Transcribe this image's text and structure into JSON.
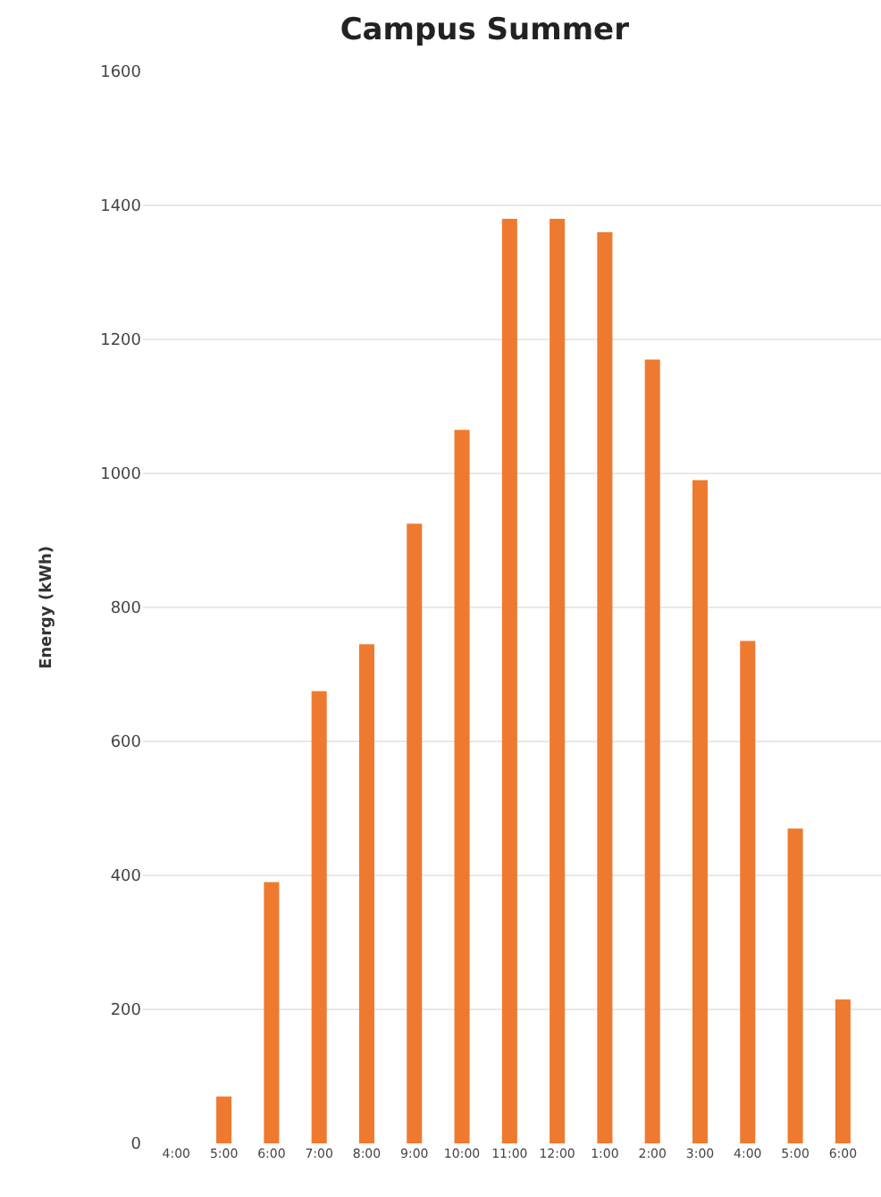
{
  "chart_data": {
    "type": "bar",
    "title": "Campus Summer",
    "ylabel": "Energy (kWh)",
    "categories": [
      "4:00",
      "5:00",
      "6:00",
      "7:00",
      "8:00",
      "9:00",
      "10:00",
      "11:00",
      "12:00",
      "1:00",
      "2:00",
      "3:00",
      "4:00",
      "5:00",
      "6:00"
    ],
    "values": [
      0,
      70,
      390,
      675,
      745,
      925,
      1065,
      1380,
      1380,
      1360,
      1170,
      990,
      750,
      470,
      215
    ],
    "color": "#ee7a30",
    "ylim": [
      0,
      1600
    ],
    "yticks": [
      0,
      200,
      400,
      600,
      800,
      1000,
      1200,
      1400,
      1600
    ],
    "grid": "y",
    "legend": false
  }
}
